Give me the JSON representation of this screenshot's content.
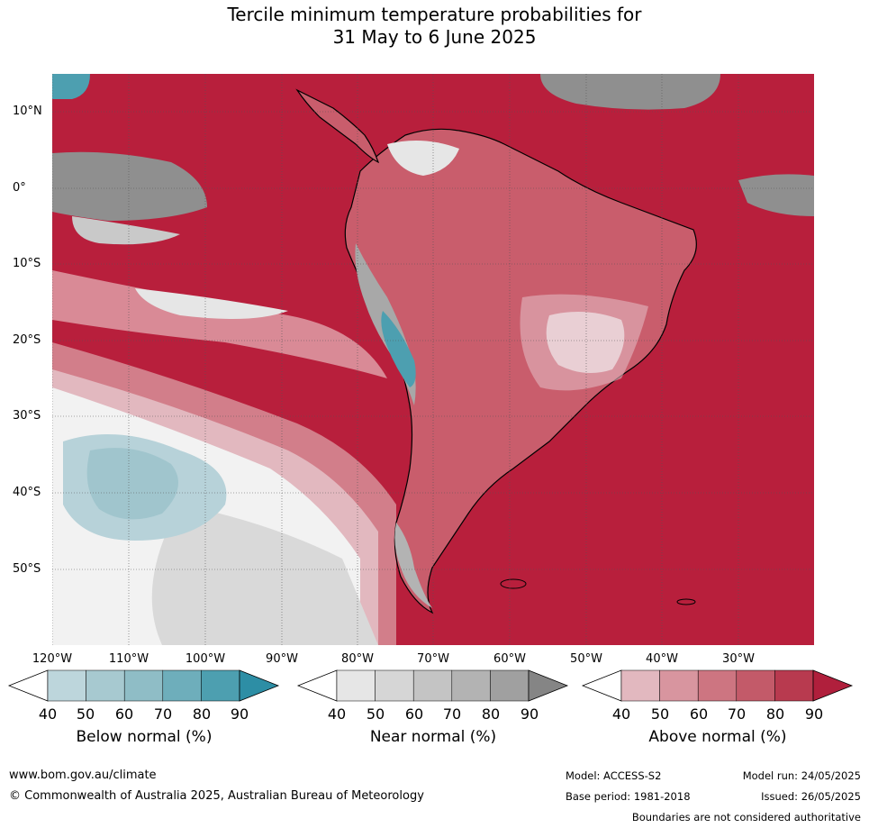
{
  "title_line1": "Tercile minimum temperature probabilities for",
  "title_line2": "31 May to 6 June 2025",
  "lat_labels": [
    "10°N",
    "0°",
    "10°S",
    "20°S",
    "30°S",
    "40°S",
    "50°S"
  ],
  "lon_labels": [
    "120°W",
    "110°W",
    "100°W",
    "90°W",
    "80°W",
    "70°W",
    "60°W",
    "50°W",
    "40°W",
    "30°W"
  ],
  "colorbars": [
    {
      "title": "Below normal (%)",
      "ticks": [
        "40",
        "50",
        "60",
        "70",
        "80",
        "90"
      ],
      "colors": [
        "#bdd6dc",
        "#a7c9d0",
        "#8fbdc6",
        "#6eaebb",
        "#4d9fb0",
        "#2d8ea5"
      ]
    },
    {
      "title": "Near normal (%)",
      "ticks": [
        "40",
        "50",
        "60",
        "70",
        "80",
        "90"
      ],
      "colors": [
        "#e6e6e6",
        "#d6d6d6",
        "#c4c4c4",
        "#b3b3b3",
        "#a0a0a0",
        "#858585"
      ]
    },
    {
      "title": "Above normal (%)",
      "ticks": [
        "40",
        "50",
        "60",
        "70",
        "80",
        "90"
      ],
      "colors": [
        "#e2b8bf",
        "#d8959f",
        "#cd7581",
        "#c35a69",
        "#b83a4f",
        "#b01f3c"
      ]
    }
  ],
  "footer": {
    "website": "www.bom.gov.au/climate",
    "copyright": "© Commonwealth of Australia 2025, Australian Bureau of Meteorology",
    "model": "Model: ACCESS-S2",
    "base_period": "Base period: 1981-2018",
    "model_run": "Model run: 24/05/2025",
    "issued": "Issued: 26/05/2025",
    "disclaimer": "Boundaries are not considered authoritative"
  },
  "map_colors": {
    "ocean_above": "#b81f3c",
    "coast": "#000000",
    "borders": "#808080"
  }
}
